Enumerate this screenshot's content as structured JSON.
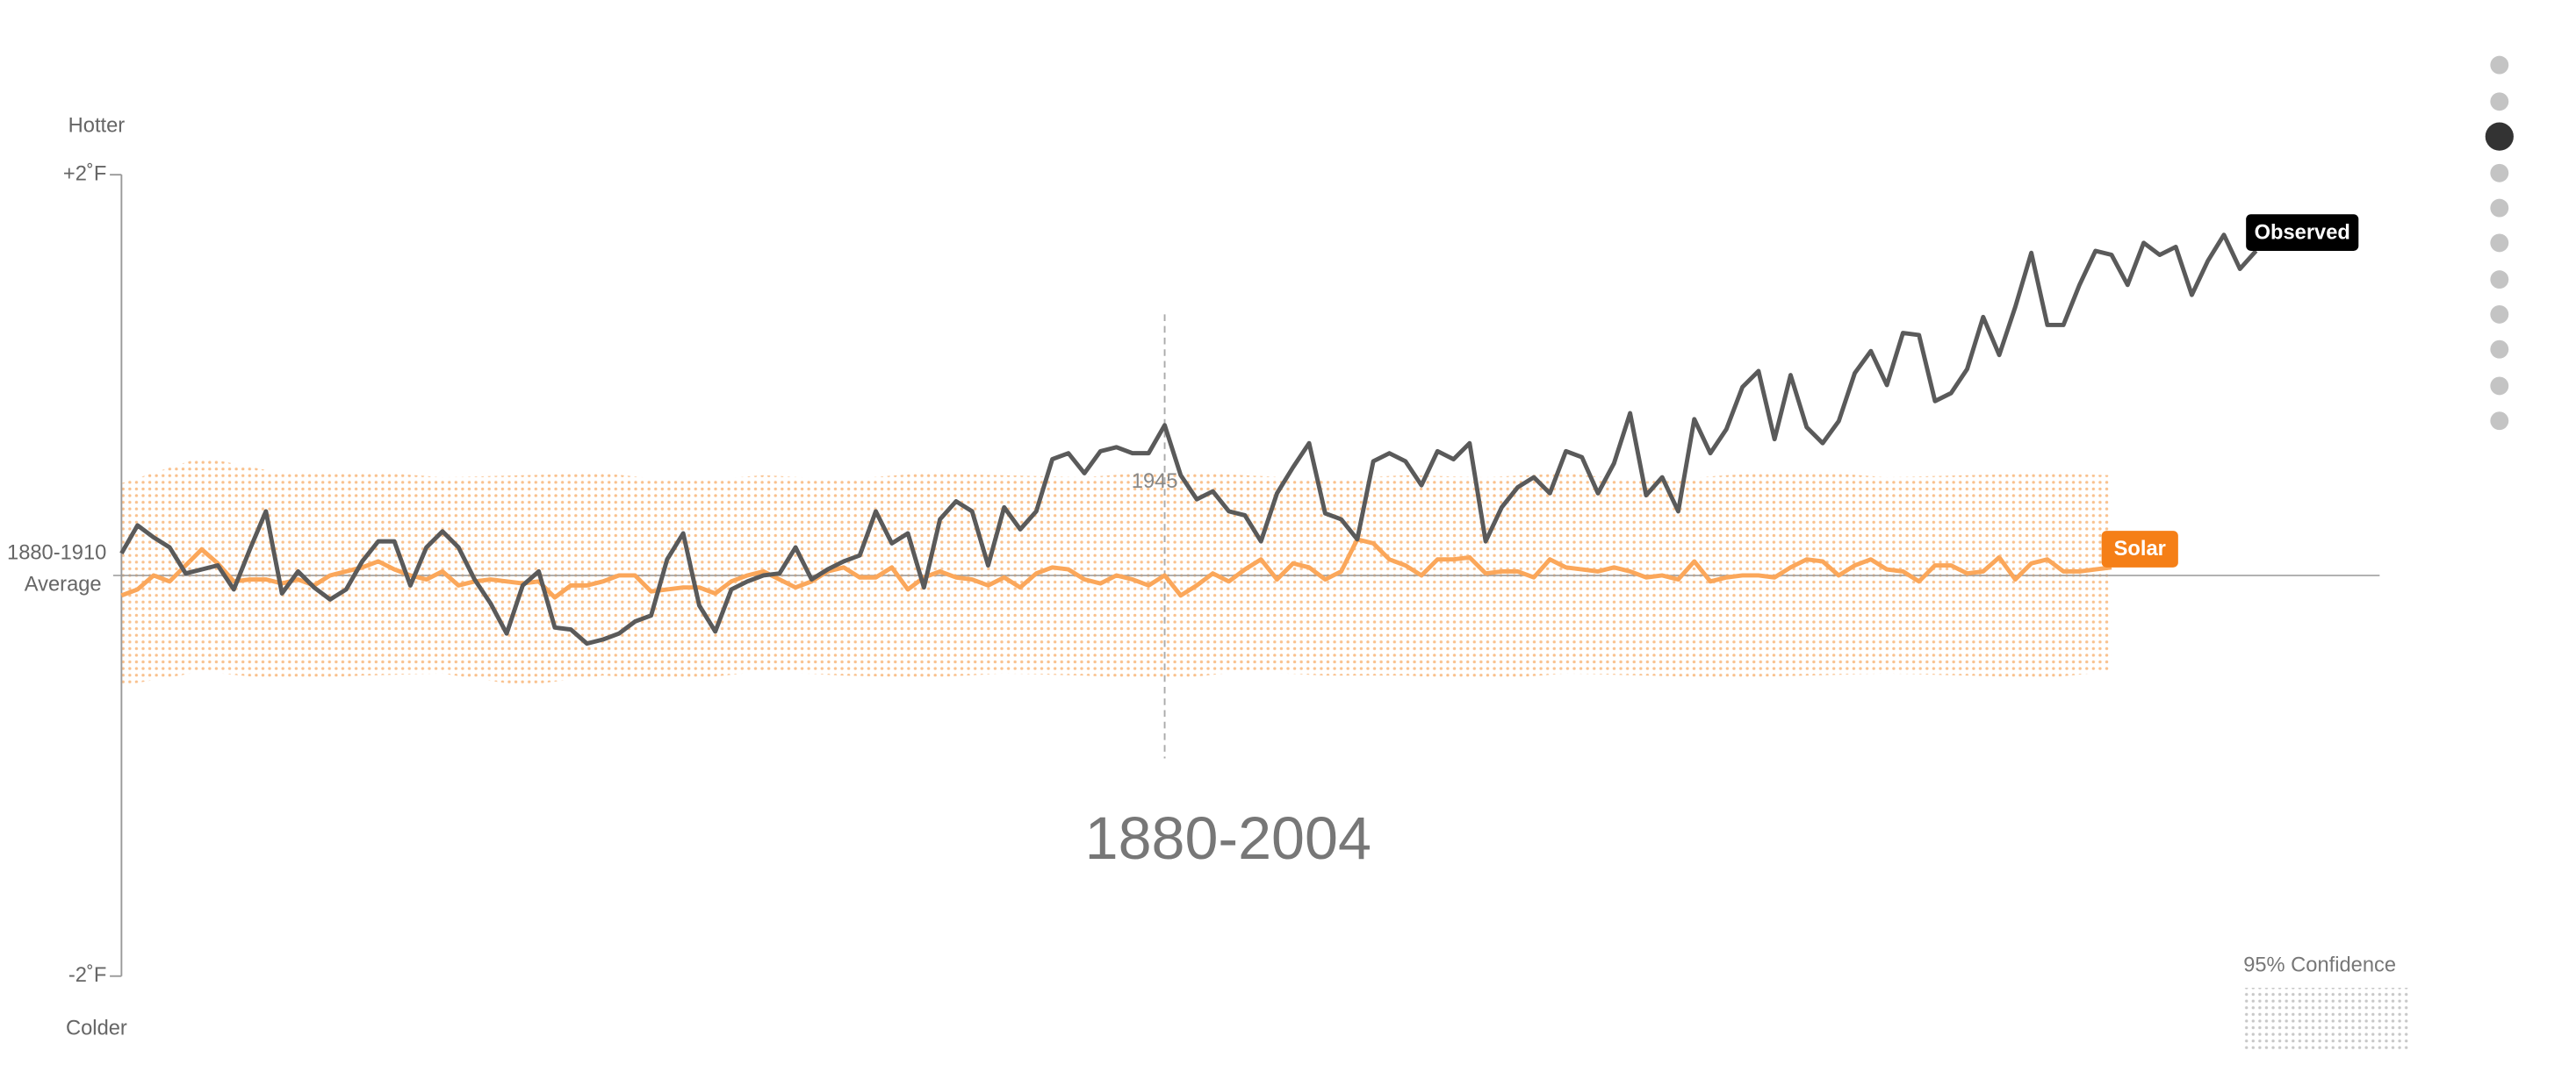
{
  "chart_data": {
    "type": "line",
    "period_label": "1880-2004",
    "top_label": "Hotter",
    "bottom_label": "Colder",
    "reference_line": {
      "value": 0,
      "label": [
        "1880-1910",
        "Average"
      ]
    },
    "annotation": {
      "x": 1945
    },
    "xlim": [
      1880,
      2015
    ],
    "ylim": [
      -2,
      2
    ],
    "yticks": [
      {
        "value": 2,
        "label": "+2˚F"
      },
      {
        "value": -2,
        "label": "-2˚F"
      }
    ],
    "series": [
      {
        "name": "Observed",
        "color": "#5a5a5a",
        "label_color": "#000000",
        "x": [
          1880,
          1881,
          1882,
          1883,
          1884,
          1885,
          1886,
          1887,
          1888,
          1889,
          1890,
          1891,
          1892,
          1893,
          1894,
          1895,
          1896,
          1897,
          1898,
          1899,
          1900,
          1901,
          1902,
          1903,
          1904,
          1905,
          1906,
          1907,
          1908,
          1909,
          1910,
          1911,
          1912,
          1913,
          1914,
          1915,
          1916,
          1917,
          1918,
          1919,
          1920,
          1921,
          1922,
          1923,
          1924,
          1925,
          1926,
          1927,
          1928,
          1929,
          1930,
          1931,
          1932,
          1933,
          1934,
          1935,
          1936,
          1937,
          1938,
          1939,
          1940,
          1941,
          1942,
          1943,
          1944,
          1945,
          1946,
          1947,
          1948,
          1949,
          1950,
          1951,
          1952,
          1953,
          1954,
          1955,
          1956,
          1957,
          1958,
          1959,
          1960,
          1961,
          1962,
          1963,
          1964,
          1965,
          1966,
          1967,
          1968,
          1969,
          1970,
          1971,
          1972,
          1973,
          1974,
          1975,
          1976,
          1977,
          1978,
          1979,
          1980,
          1981,
          1982,
          1983,
          1984,
          1985,
          1986,
          1987,
          1988,
          1989,
          1990,
          1991,
          1992,
          1993,
          1994,
          1995,
          1996,
          1997,
          1998,
          1999,
          2000,
          2001,
          2002,
          2003,
          2004,
          2005,
          2006,
          2007,
          2008,
          2009,
          2010,
          2011,
          2012,
          2013
        ],
        "values": [
          0.11,
          0.25,
          0.19,
          0.14,
          0.01,
          0.03,
          0.05,
          -0.07,
          0.13,
          0.32,
          -0.09,
          0.02,
          -0.06,
          -0.12,
          -0.07,
          0.07,
          0.17,
          0.17,
          -0.05,
          0.14,
          0.22,
          0.14,
          -0.02,
          -0.14,
          -0.29,
          -0.05,
          0.02,
          -0.26,
          -0.27,
          -0.34,
          -0.32,
          -0.29,
          -0.23,
          -0.2,
          0.08,
          0.21,
          -0.15,
          -0.28,
          -0.07,
          -0.03,
          0,
          0.01,
          0.14,
          -0.02,
          0.03,
          0.07,
          0.1,
          0.32,
          0.16,
          0.21,
          -0.06,
          0.28,
          0.37,
          0.32,
          0.05,
          0.34,
          0.23,
          0.32,
          0.58,
          0.61,
          0.51,
          0.62,
          0.64,
          0.61,
          0.61,
          0.75,
          0.5,
          0.38,
          0.42,
          0.32,
          0.3,
          0.17,
          0.41,
          0.54,
          0.66,
          0.31,
          0.28,
          0.18,
          0.57,
          0.61,
          0.57,
          0.45,
          0.62,
          0.58,
          0.66,
          0.17,
          0.34,
          0.44,
          0.49,
          0.41,
          0.62,
          0.59,
          0.41,
          0.56,
          0.81,
          0.4,
          0.49,
          0.32,
          0.78,
          0.61,
          0.73,
          0.94,
          1.02,
          0.68,
          1.0,
          0.74,
          0.66,
          0.77,
          1.01,
          1.12,
          0.95,
          1.21,
          1.2,
          0.87,
          0.91,
          1.03,
          1.29,
          1.1,
          1.34,
          1.61,
          1.25,
          1.25,
          1.45,
          1.62,
          1.6,
          1.45,
          1.66,
          1.6,
          1.64,
          1.4,
          1.57,
          1.7,
          1.53,
          1.62
        ]
      },
      {
        "name": "Solar",
        "color": "#fba75a",
        "label_color": "#f57f17",
        "x": [
          1880,
          1881,
          1882,
          1883,
          1884,
          1885,
          1886,
          1887,
          1888,
          1889,
          1890,
          1891,
          1892,
          1893,
          1894,
          1895,
          1896,
          1897,
          1898,
          1899,
          1900,
          1901,
          1902,
          1903,
          1904,
          1905,
          1906,
          1907,
          1908,
          1909,
          1910,
          1911,
          1912,
          1913,
          1914,
          1915,
          1916,
          1917,
          1918,
          1919,
          1920,
          1921,
          1922,
          1923,
          1924,
          1925,
          1926,
          1927,
          1928,
          1929,
          1930,
          1931,
          1932,
          1933,
          1934,
          1935,
          1936,
          1937,
          1938,
          1939,
          1940,
          1941,
          1942,
          1943,
          1944,
          1945,
          1946,
          1947,
          1948,
          1949,
          1950,
          1951,
          1952,
          1953,
          1954,
          1955,
          1956,
          1957,
          1958,
          1959,
          1960,
          1961,
          1962,
          1963,
          1964,
          1965,
          1966,
          1967,
          1968,
          1969,
          1970,
          1971,
          1972,
          1973,
          1974,
          1975,
          1976,
          1977,
          1978,
          1979,
          1980,
          1981,
          1982,
          1983,
          1984,
          1985,
          1986,
          1987,
          1988,
          1989,
          1990,
          1991,
          1992,
          1993,
          1994,
          1995,
          1996,
          1997,
          1998,
          1999,
          2000,
          2001,
          2002,
          2003,
          2004
        ],
        "values": [
          -0.1,
          -0.07,
          0.0,
          -0.03,
          0.05,
          0.13,
          0.06,
          -0.03,
          -0.02,
          -0.02,
          -0.04,
          -0.02,
          -0.05,
          0.0,
          0.02,
          0.04,
          0.07,
          0.03,
          0.0,
          -0.02,
          0.02,
          -0.05,
          -0.03,
          -0.02,
          -0.03,
          -0.04,
          -0.03,
          -0.11,
          -0.05,
          -0.05,
          -0.03,
          0.0,
          0.0,
          -0.08,
          -0.07,
          -0.06,
          -0.06,
          -0.09,
          -0.03,
          0.0,
          0.02,
          -0.02,
          -0.06,
          -0.03,
          0.02,
          0.04,
          -0.01,
          -0.01,
          0.04,
          -0.07,
          -0.01,
          0.02,
          -0.01,
          -0.02,
          -0.05,
          -0.01,
          -0.06,
          0.01,
          0.04,
          0.03,
          -0.02,
          -0.04,
          0.0,
          -0.02,
          -0.05,
          0.0,
          -0.1,
          -0.05,
          0.01,
          -0.03,
          0.03,
          0.08,
          -0.02,
          0.06,
          0.04,
          -0.02,
          0.02,
          0.18,
          0.16,
          0.08,
          0.05,
          0.0,
          0.08,
          0.08,
          0.09,
          0.01,
          0.02,
          0.02,
          -0.01,
          0.08,
          0.04,
          0.03,
          0.02,
          0.04,
          0.02,
          -0.01,
          0.0,
          -0.02,
          0.07,
          -0.03,
          -0.01,
          0.0,
          0.0,
          -0.01,
          0.04,
          0.08,
          0.07,
          0.0,
          0.05,
          0.08,
          0.03,
          0.02,
          -0.03,
          0.05,
          0.05,
          0.01,
          0.02,
          0.09,
          -0.02,
          0.06,
          0.08,
          0.02,
          0.02,
          0.03,
          0.04
        ],
        "band": {
          "x": [
            1880,
            1885,
            1890,
            1895,
            1900,
            1905,
            1910,
            1915,
            1920,
            1925,
            1930,
            1935,
            1940,
            1945,
            1950,
            1955,
            1960,
            1965,
            1970,
            1975,
            1980,
            1985,
            1990,
            1995,
            2000,
            2004
          ],
          "upper": [
            0.46,
            0.59,
            0.51,
            0.52,
            0.49,
            0.5,
            0.51,
            0.47,
            0.5,
            0.48,
            0.51,
            0.5,
            0.49,
            0.52,
            0.5,
            0.48,
            0.5,
            0.49,
            0.51,
            0.47,
            0.5,
            0.52,
            0.49,
            0.5,
            0.51,
            0.5
          ],
          "lower": [
            -0.55,
            -0.48,
            -0.52,
            -0.5,
            -0.49,
            -0.55,
            -0.5,
            -0.52,
            -0.48,
            -0.5,
            -0.51,
            -0.49,
            -0.5,
            -0.52,
            -0.48,
            -0.5,
            -0.5,
            -0.52,
            -0.49,
            -0.5,
            -0.51,
            -0.5,
            -0.49,
            -0.5,
            -0.51,
            -0.48
          ]
        }
      }
    ],
    "legend": {
      "label": "95% Confidence"
    }
  }
}
